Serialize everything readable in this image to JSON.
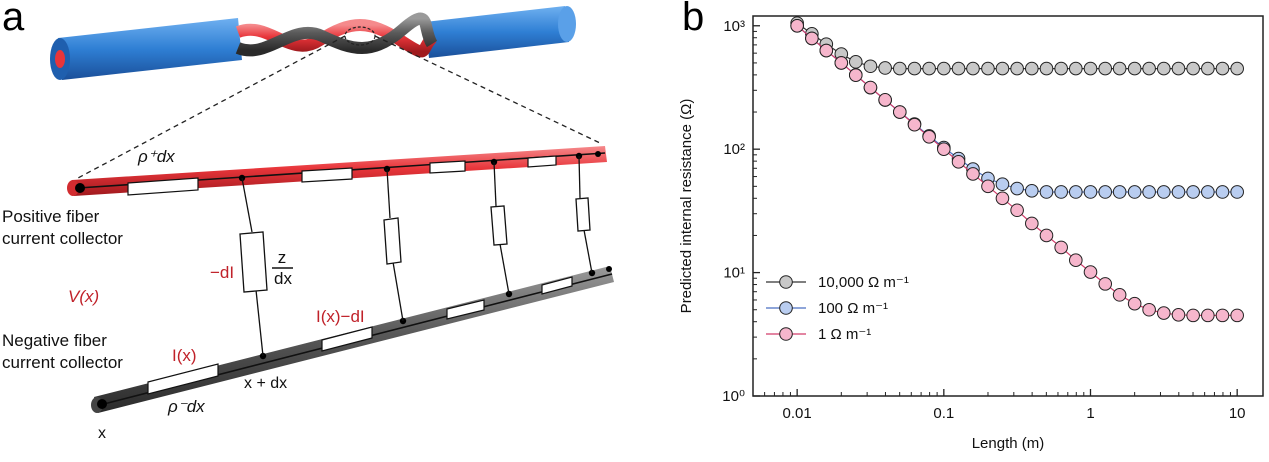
{
  "figure": {
    "panel_a_label": "a",
    "panel_b_label": "b"
  },
  "circuit": {
    "rho_plus": "ρ⁺dx",
    "rho_minus": "ρ⁻dx",
    "positive_line1": "Positive fiber",
    "positive_line2": "current collector",
    "negative_line1": "Negative fiber",
    "negative_line2": "current collector",
    "minus_dI": "−dI",
    "z_num": "z",
    "z_den": "dx",
    "V_x": "V(x)",
    "I_x": "I(x)",
    "I_x_minus_dI": "I(x)−dI",
    "x": "x",
    "x_plus_dx": "x + dx",
    "colors": {
      "positive": "#e8353a",
      "negative": "#5a5a5a",
      "sheath": "#2f7fd4",
      "variable_text": "#c0222a"
    }
  },
  "chart_data": {
    "type": "scatter",
    "title": "",
    "xlabel": "Length (m)",
    "ylabel": "Predicted internal resistance (Ω)",
    "xscale": "log",
    "yscale": "log",
    "xlim": [
      0.005,
      15
    ],
    "ylim": [
      1,
      1200
    ],
    "xticks": [
      0.01,
      0.1,
      1,
      10
    ],
    "xtick_labels": [
      "0.01",
      "0.1",
      "1",
      "10"
    ],
    "yticks": [
      1,
      10,
      100,
      1000
    ],
    "ytick_labels": [
      "10⁰",
      "10¹",
      "10²",
      "10³"
    ],
    "legend_position": "lower-left",
    "grid": false,
    "x": [
      0.01,
      0.0126,
      0.0158,
      0.02,
      0.0251,
      0.0316,
      0.0398,
      0.0501,
      0.0631,
      0.0794,
      0.1,
      0.126,
      0.158,
      0.2,
      0.251,
      0.316,
      0.398,
      0.501,
      0.631,
      0.794,
      1,
      1.26,
      1.58,
      2,
      2.51,
      3.16,
      3.98,
      5.01,
      6.31,
      7.94,
      10
    ],
    "series": [
      {
        "name": "10,000 Ω m⁻¹",
        "color": "#c8c8c8",
        "line": "#333333",
        "values": [
          1050,
          860,
          710,
          590,
          510,
          470,
          455,
          450,
          450,
          450,
          450,
          450,
          450,
          450,
          450,
          450,
          450,
          450,
          450,
          450,
          450,
          450,
          450,
          450,
          450,
          450,
          450,
          450,
          450,
          450,
          450
        ]
      },
      {
        "name": "100 Ω m⁻¹",
        "color": "#b9cdf0",
        "line": "#4a6fc2",
        "values": [
          1000,
          790,
          630,
          500,
          400,
          315,
          250,
          200,
          160,
          128,
          103,
          84,
          69,
          58,
          52,
          48,
          46,
          45,
          45,
          45,
          45,
          45,
          45,
          45,
          45,
          45,
          45,
          45,
          45,
          45,
          45
        ]
      },
      {
        "name": "1 Ω m⁻¹",
        "color": "#f6b6cc",
        "line": "#d23c6a",
        "values": [
          1000,
          790,
          630,
          500,
          398,
          316,
          251,
          200,
          158,
          126,
          100,
          79,
          63,
          50,
          40,
          32,
          25,
          20,
          16,
          12.6,
          10.1,
          8.1,
          6.6,
          5.6,
          5.0,
          4.7,
          4.55,
          4.5,
          4.5,
          4.5,
          4.5
        ]
      }
    ]
  }
}
